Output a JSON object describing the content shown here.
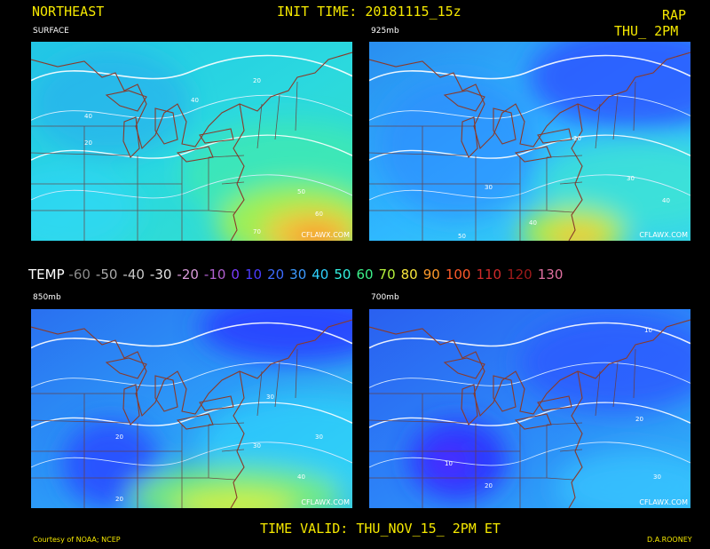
{
  "header": {
    "region": "NORTHEAST",
    "init_time": "INIT TIME: 20181115_15z",
    "model": "RAP",
    "valid_short": "THU_ 2PM"
  },
  "panels": [
    {
      "label": "SURFACE",
      "credit": "CFLAWX.COM"
    },
    {
      "label": "925mb",
      "credit": "CFLAWX.COM"
    },
    {
      "label": "850mb",
      "credit": "CFLAWX.COM"
    },
    {
      "label": "700mb",
      "credit": "CFLAWX.COM"
    }
  ],
  "legend": {
    "title": "TEMP",
    "items": [
      {
        "label": "-60",
        "color": "#8a8a8a"
      },
      {
        "label": "-50",
        "color": "#a9a9a9"
      },
      {
        "label": "-40",
        "color": "#c8c8c8"
      },
      {
        "label": "-30",
        "color": "#e4e4e4"
      },
      {
        "label": "-20",
        "color": "#d99ad9"
      },
      {
        "label": "-10",
        "color": "#b060d0"
      },
      {
        "label": "0",
        "color": "#7a3cff"
      },
      {
        "label": "10",
        "color": "#4b3cff"
      },
      {
        "label": "20",
        "color": "#3c6bff"
      },
      {
        "label": "30",
        "color": "#3c9aff"
      },
      {
        "label": "40",
        "color": "#2fd2ff"
      },
      {
        "label": "50",
        "color": "#33f0e0"
      },
      {
        "label": "60",
        "color": "#3cf08a"
      },
      {
        "label": "70",
        "color": "#b6f23c"
      },
      {
        "label": "80",
        "color": "#f6e63c"
      },
      {
        "label": "90",
        "color": "#ff9a2a"
      },
      {
        "label": "100",
        "color": "#ff5a2a"
      },
      {
        "label": "110",
        "color": "#d02a2a"
      },
      {
        "label": "120",
        "color": "#a01a1a"
      },
      {
        "label": "130",
        "color": "#e070a0"
      }
    ]
  },
  "footer": {
    "time_valid": "TIME VALID: THU_NOV_15_ 2PM ET",
    "courtesy": "Courtesy of NOAA; NCEP",
    "author": "D.A.ROONEY"
  },
  "contour_labels": {
    "p0": [
      "20",
      "40",
      "20",
      "50",
      "60",
      "40",
      "70"
    ],
    "p1": [
      "20",
      "30",
      "40",
      "30",
      "50",
      "40"
    ],
    "p2": [
      "20",
      "30",
      "20",
      "30",
      "40",
      "30"
    ],
    "p3": [
      "10",
      "20",
      "10",
      "20",
      "30"
    ]
  }
}
